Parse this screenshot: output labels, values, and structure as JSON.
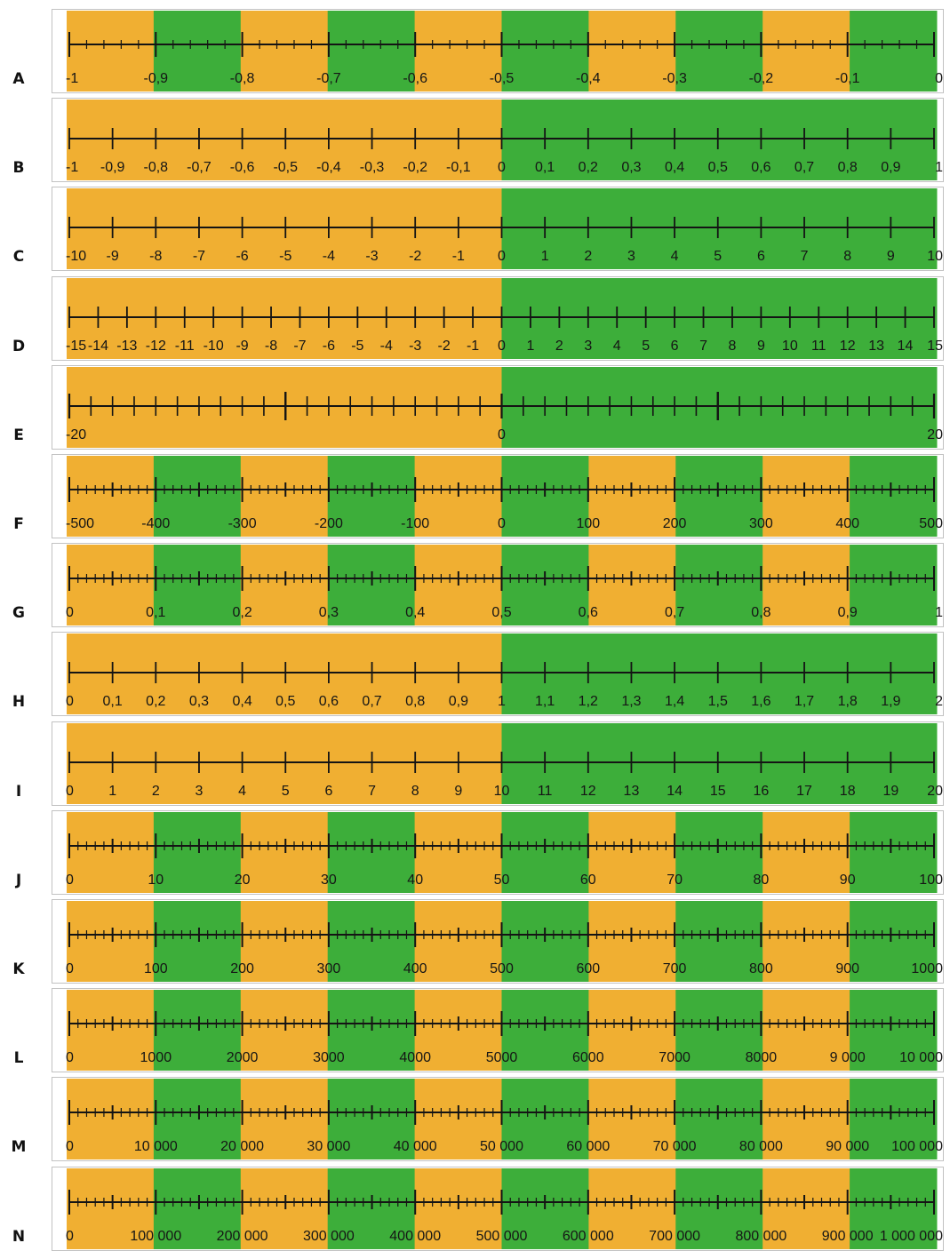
{
  "colors": {
    "orange": "#F0AF32",
    "green": "#3DAE3A",
    "line": "#141414"
  },
  "rows": [
    {
      "letter": "A",
      "bands": [
        "O",
        "G",
        "O",
        "G",
        "O",
        "G",
        "O",
        "G",
        "O",
        "G"
      ],
      "minor": 50,
      "medium": [
        25,
        75,
        125,
        175,
        225,
        275,
        325,
        375,
        425,
        475
      ],
      "major": [
        0,
        50,
        100,
        150,
        200,
        250,
        300,
        350,
        400,
        450,
        500
      ],
      "labels": [
        "-1",
        "-0,9",
        "-0,8",
        "-0,7",
        "-0,6",
        "-0,5",
        "-0,4",
        "-0,3",
        "-0,2",
        "-0,1",
        "0"
      ]
    },
    {
      "letter": "B",
      "bands": [
        "O",
        "G"
      ],
      "minor": 0,
      "medium": [],
      "major": [
        0,
        1,
        2,
        3,
        4,
        5,
        6,
        7,
        8,
        9,
        10,
        11,
        12,
        13,
        14,
        15,
        16,
        17,
        18,
        19,
        20
      ],
      "divisions": 20,
      "labels": [
        "-1",
        "-0,9",
        "-0,8",
        "-0,7",
        "-0,6",
        "-0,5",
        "-0,4",
        "-0,3",
        "-0,2",
        "-0,1",
        "0",
        "0,1",
        "0,2",
        "0,3",
        "0,4",
        "0,5",
        "0,6",
        "0,7",
        "0,8",
        "0,9",
        "1"
      ]
    },
    {
      "letter": "C",
      "bands": [
        "O",
        "G"
      ],
      "minor": 0,
      "medium": [],
      "major": [
        0,
        1,
        2,
        3,
        4,
        5,
        6,
        7,
        8,
        9,
        10,
        11,
        12,
        13,
        14,
        15,
        16,
        17,
        18,
        19,
        20
      ],
      "divisions": 20,
      "labels": [
        "-10",
        "-9",
        "-8",
        "-7",
        "-6",
        "-5",
        "-4",
        "-3",
        "-2",
        "-1",
        "0",
        "1",
        "2",
        "3",
        "4",
        "5",
        "6",
        "7",
        "8",
        "9",
        "10"
      ]
    },
    {
      "letter": "D",
      "bands": [
        "O",
        "G"
      ],
      "minor": 0,
      "medium": [],
      "major": [
        0,
        1,
        2,
        3,
        4,
        5,
        6,
        7,
        8,
        9,
        10,
        11,
        12,
        13,
        14,
        15,
        16,
        17,
        18,
        19,
        20,
        21,
        22,
        23,
        24,
        25,
        26,
        27,
        28,
        29,
        30
      ],
      "divisions": 30,
      "labels": [
        "-15",
        "-14",
        "-13",
        "-12",
        "-11",
        "-10",
        "-9",
        "-8",
        "-7",
        "-6",
        "-5",
        "-4",
        "-3",
        "-2",
        "-1",
        "0",
        "1",
        "2",
        "3",
        "4",
        "5",
        "6",
        "7",
        "8",
        "9",
        "10",
        "11",
        "12",
        "13",
        "14",
        "15"
      ]
    },
    {
      "letter": "E",
      "bands": [
        "O",
        "G"
      ],
      "minor": 40,
      "medium": [
        10,
        30
      ],
      "major": [
        0,
        20,
        40
      ],
      "labels": [
        "-20",
        "",
        "0",
        "",
        "20"
      ],
      "label_positions": [
        0,
        10,
        20,
        30,
        40
      ],
      "divisions": 40,
      "medium_all": [
        0,
        1,
        2,
        3,
        4,
        5,
        6,
        7,
        8,
        9,
        10,
        11,
        12,
        13,
        14,
        15,
        16,
        17,
        18,
        19,
        20,
        21,
        22,
        23,
        24,
        25,
        26,
        27,
        28,
        29,
        30,
        31,
        32,
        33,
        34,
        35,
        36,
        37,
        38,
        39,
        40
      ]
    },
    {
      "letter": "F",
      "bands": [
        "O",
        "G",
        "O",
        "G",
        "O",
        "G",
        "O",
        "G",
        "O",
        "G"
      ],
      "minor": 100,
      "medium": [
        5,
        15,
        25,
        35,
        45,
        55,
        65,
        75,
        85,
        95
      ],
      "major": [
        0,
        10,
        20,
        30,
        40,
        50,
        60,
        70,
        80,
        90,
        100
      ],
      "divisions": 100,
      "labels": [
        "-500",
        "-400",
        "-300",
        "-200",
        "-100",
        "0",
        "100",
        "200",
        "300",
        "400",
        "500"
      ]
    },
    {
      "letter": "G",
      "bands": [
        "O",
        "G",
        "O",
        "G",
        "O",
        "G",
        "O",
        "G",
        "O",
        "G"
      ],
      "minor": 100,
      "medium": [
        5,
        15,
        25,
        35,
        45,
        55,
        65,
        75,
        85,
        95
      ],
      "major": [
        0,
        10,
        20,
        30,
        40,
        50,
        60,
        70,
        80,
        90,
        100
      ],
      "divisions": 100,
      "labels": [
        "0",
        "0,1",
        "0,2",
        "0,3",
        "0,4",
        "0,5",
        "0,6",
        "0,7",
        "0,8",
        "0,9",
        "1"
      ]
    },
    {
      "letter": "H",
      "bands": [
        "O",
        "G"
      ],
      "minor": 0,
      "medium": [],
      "major": [
        0,
        1,
        2,
        3,
        4,
        5,
        6,
        7,
        8,
        9,
        10,
        11,
        12,
        13,
        14,
        15,
        16,
        17,
        18,
        19,
        20
      ],
      "divisions": 20,
      "labels": [
        "0",
        "0,1",
        "0,2",
        "0,3",
        "0,4",
        "0,5",
        "0,6",
        "0,7",
        "0,8",
        "0,9",
        "1",
        "1,1",
        "1,2",
        "1,3",
        "1,4",
        "1,5",
        "1,6",
        "1,7",
        "1,8",
        "1,9",
        "2"
      ]
    },
    {
      "letter": "I",
      "bands": [
        "O",
        "G"
      ],
      "minor": 0,
      "medium": [],
      "major": [
        0,
        1,
        2,
        3,
        4,
        5,
        6,
        7,
        8,
        9,
        10,
        11,
        12,
        13,
        14,
        15,
        16,
        17,
        18,
        19,
        20
      ],
      "divisions": 20,
      "labels": [
        "0",
        "1",
        "2",
        "3",
        "4",
        "5",
        "6",
        "7",
        "8",
        "9",
        "10",
        "11",
        "12",
        "13",
        "14",
        "15",
        "16",
        "17",
        "18",
        "19",
        "20"
      ]
    },
    {
      "letter": "J",
      "bands": [
        "O",
        "G",
        "O",
        "G",
        "O",
        "G",
        "O",
        "G",
        "O",
        "G"
      ],
      "minor": 100,
      "medium": [
        5,
        15,
        25,
        35,
        45,
        55,
        65,
        75,
        85,
        95
      ],
      "major": [
        0,
        10,
        20,
        30,
        40,
        50,
        60,
        70,
        80,
        90,
        100
      ],
      "divisions": 100,
      "labels": [
        "0",
        "10",
        "20",
        "30",
        "40",
        "50",
        "60",
        "70",
        "80",
        "90",
        "100"
      ]
    },
    {
      "letter": "K",
      "bands": [
        "O",
        "G",
        "O",
        "G",
        "O",
        "G",
        "O",
        "G",
        "O",
        "G"
      ],
      "minor": 100,
      "medium": [
        5,
        15,
        25,
        35,
        45,
        55,
        65,
        75,
        85,
        95
      ],
      "major": [
        0,
        10,
        20,
        30,
        40,
        50,
        60,
        70,
        80,
        90,
        100
      ],
      "divisions": 100,
      "labels": [
        "0",
        "100",
        "200",
        "300",
        "400",
        "500",
        "600",
        "700",
        "800",
        "900",
        "1000"
      ]
    },
    {
      "letter": "L",
      "bands": [
        "O",
        "G",
        "O",
        "G",
        "O",
        "G",
        "O",
        "G",
        "O",
        "G"
      ],
      "minor": 100,
      "medium": [
        5,
        15,
        25,
        35,
        45,
        55,
        65,
        75,
        85,
        95
      ],
      "major": [
        0,
        10,
        20,
        30,
        40,
        50,
        60,
        70,
        80,
        90,
        100
      ],
      "divisions": 100,
      "labels": [
        "0",
        "1000",
        "2000",
        "3000",
        "4000",
        "5000",
        "6000",
        "7000",
        "8000",
        "9 000",
        "10 000"
      ]
    },
    {
      "letter": "M",
      "bands": [
        "O",
        "G",
        "O",
        "G",
        "O",
        "G",
        "O",
        "G",
        "O",
        "G"
      ],
      "minor": 100,
      "medium": [
        5,
        15,
        25,
        35,
        45,
        55,
        65,
        75,
        85,
        95
      ],
      "major": [
        0,
        10,
        20,
        30,
        40,
        50,
        60,
        70,
        80,
        90,
        100
      ],
      "divisions": 100,
      "labels": [
        "0",
        "10 000",
        "20 000",
        "30 000",
        "40 000",
        "50 000",
        "60 000",
        "70 000",
        "80 000",
        "90 000",
        "100 000"
      ]
    },
    {
      "letter": "N",
      "bands": [
        "O",
        "G",
        "O",
        "G",
        "O",
        "G",
        "O",
        "G",
        "O",
        "G"
      ],
      "minor": 100,
      "medium": [
        5,
        15,
        25,
        35,
        45,
        55,
        65,
        75,
        85,
        95
      ],
      "major": [
        0,
        10,
        20,
        30,
        40,
        50,
        60,
        70,
        80,
        90,
        100
      ],
      "divisions": 100,
      "labels": [
        "0",
        "100 000",
        "200 000",
        "300 000",
        "400 000",
        "500 000",
        "600 000",
        "700 000",
        "800 000",
        "900 000",
        "1 000 000"
      ]
    }
  ]
}
